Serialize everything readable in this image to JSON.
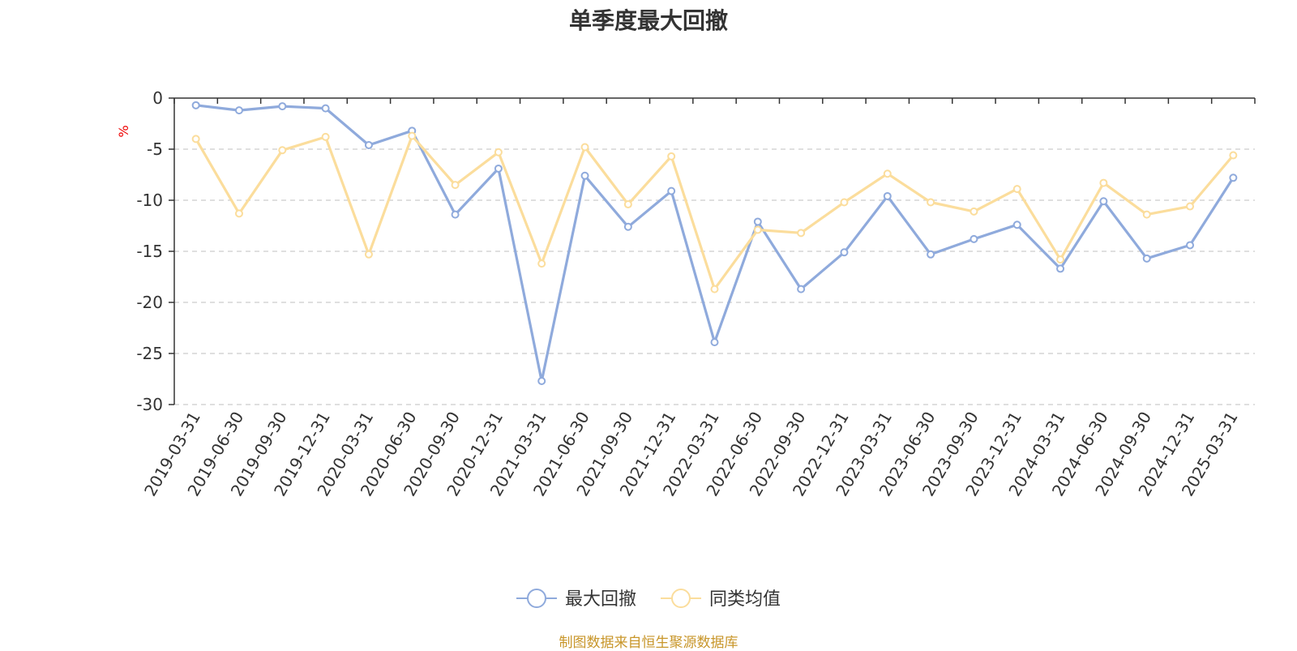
{
  "chart_data": {
    "type": "line",
    "title": "单季度最大回撤",
    "ylabel": "%",
    "ylim": [
      -30,
      0
    ],
    "yticks": [
      0,
      -5,
      -10,
      -15,
      -20,
      -25,
      -30
    ],
    "grid": true,
    "legend_position": "bottom-center",
    "categories": [
      "2019-03-31",
      "2019-06-30",
      "2019-09-30",
      "2019-12-31",
      "2020-03-31",
      "2020-06-30",
      "2020-09-30",
      "2020-12-31",
      "2021-03-31",
      "2021-06-30",
      "2021-09-30",
      "2021-12-31",
      "2022-03-31",
      "2022-06-30",
      "2022-09-30",
      "2022-12-31",
      "2023-03-31",
      "2023-06-30",
      "2023-09-30",
      "2023-12-31",
      "2024-03-31",
      "2024-06-30",
      "2024-09-30",
      "2024-12-31",
      "2025-03-31"
    ],
    "series": [
      {
        "name": "最大回撤",
        "color": "#8faadc",
        "values": [
          -0.7,
          -1.2,
          -0.8,
          -1.0,
          -4.6,
          -3.2,
          -11.4,
          -6.9,
          -27.7,
          -7.6,
          -12.6,
          -9.1,
          -23.9,
          -12.1,
          -18.7,
          -15.1,
          -9.6,
          -15.3,
          -13.8,
          -12.4,
          -16.7,
          -10.1,
          -15.7,
          -14.4,
          -7.8
        ]
      },
      {
        "name": "同类均值",
        "color": "#fbdd9c",
        "values": [
          -4.0,
          -11.3,
          -5.1,
          -3.8,
          -15.3,
          -3.7,
          -8.5,
          -5.3,
          -16.2,
          -4.8,
          -10.4,
          -5.7,
          -18.7,
          -12.9,
          -13.2,
          -10.2,
          -7.4,
          -10.2,
          -11.1,
          -8.9,
          -15.8,
          -8.3,
          -11.4,
          -10.6,
          -5.6
        ]
      }
    ],
    "colors": {
      "axis": "#333333",
      "grid": "#cccccc",
      "unit": "#ee0000",
      "source": "#c8962a"
    }
  },
  "source_note": "制图数据来自恒生聚源数据库"
}
